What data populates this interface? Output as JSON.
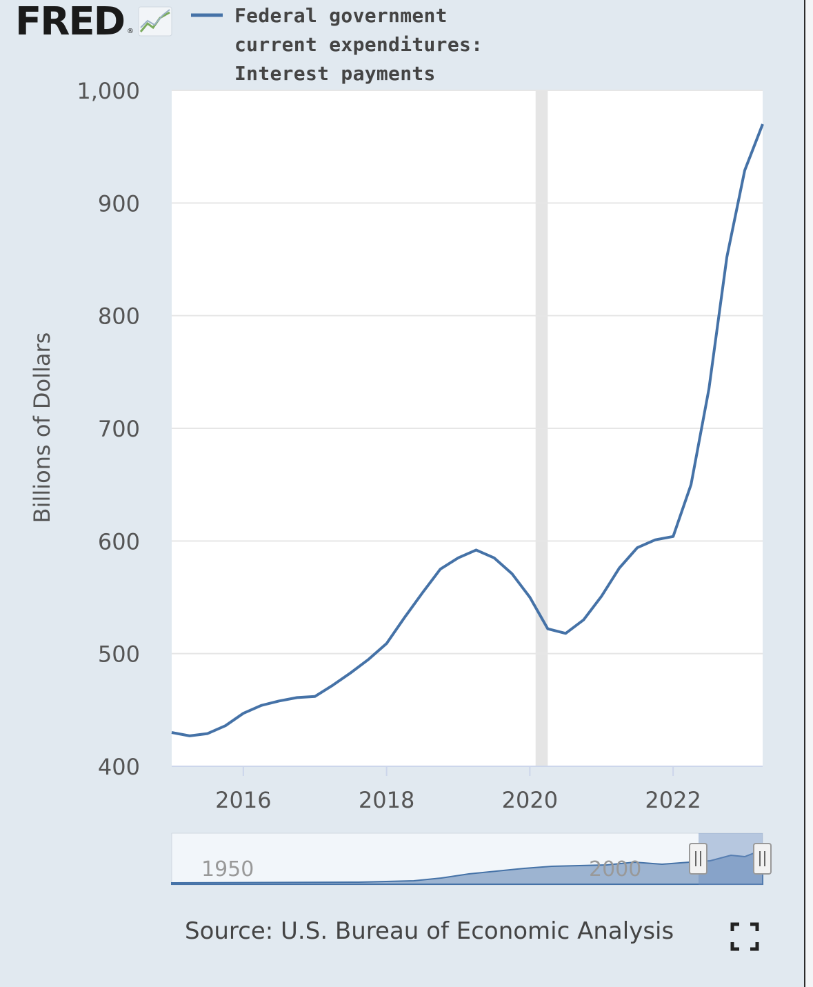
{
  "brand": {
    "name": "FRED",
    "reg_mark": "®",
    "icon": "chart-line-icon"
  },
  "legend": {
    "color": "#4572a7",
    "lines": [
      "Federal government",
      "current expenditures:",
      "Interest payments"
    ]
  },
  "source_text": "Source: U.S. Bureau of Economic Analysis",
  "fullscreen_icon": "fullscreen-icon",
  "colors": {
    "background": "#e1e9f0",
    "plot_bg": "#ffffff",
    "line": "#4572a7",
    "recession": "#e5e5e5",
    "grid": "#e6e6e6"
  },
  "chart_data": {
    "type": "line",
    "ylabel": "Billions of Dollars",
    "ylim": [
      400,
      1000
    ],
    "xlim": [
      2015.0,
      2023.25
    ],
    "y_ticks": [
      400,
      500,
      600,
      700,
      800,
      900,
      1000
    ],
    "y_tick_labels": [
      "400",
      "500",
      "600",
      "700",
      "800",
      "900",
      "1,000"
    ],
    "x_ticks": [
      2016,
      2018,
      2020,
      2022
    ],
    "x_tick_labels": [
      "2016",
      "2018",
      "2020",
      "2022"
    ],
    "recession": [
      2020.08,
      2020.25
    ],
    "grid": true,
    "series": [
      {
        "x": [
          2015.0,
          2015.25,
          2015.5,
          2015.75,
          2016.0,
          2016.25,
          2016.5,
          2016.75,
          2017.0,
          2017.25,
          2017.5,
          2017.75,
          2018.0,
          2018.25,
          2018.5,
          2018.75,
          2019.0,
          2019.25,
          2019.5,
          2019.75,
          2020.0,
          2020.25,
          2020.5,
          2020.75,
          2021.0,
          2021.25,
          2021.5,
          2021.75,
          2022.0,
          2022.25,
          2022.5,
          2022.75,
          2023.0,
          2023.25
        ],
        "values": [
          430,
          427,
          429,
          436,
          447,
          454,
          458,
          461,
          462,
          472,
          483,
          495,
          509,
          532,
          554,
          575,
          585,
          592,
          585,
          571,
          550,
          522,
          518,
          530,
          551,
          576,
          594,
          601,
          604,
          650,
          735,
          852,
          929,
          970
        ]
      }
    ]
  },
  "navigator": {
    "labels": [
      "1950",
      "2000"
    ]
  }
}
